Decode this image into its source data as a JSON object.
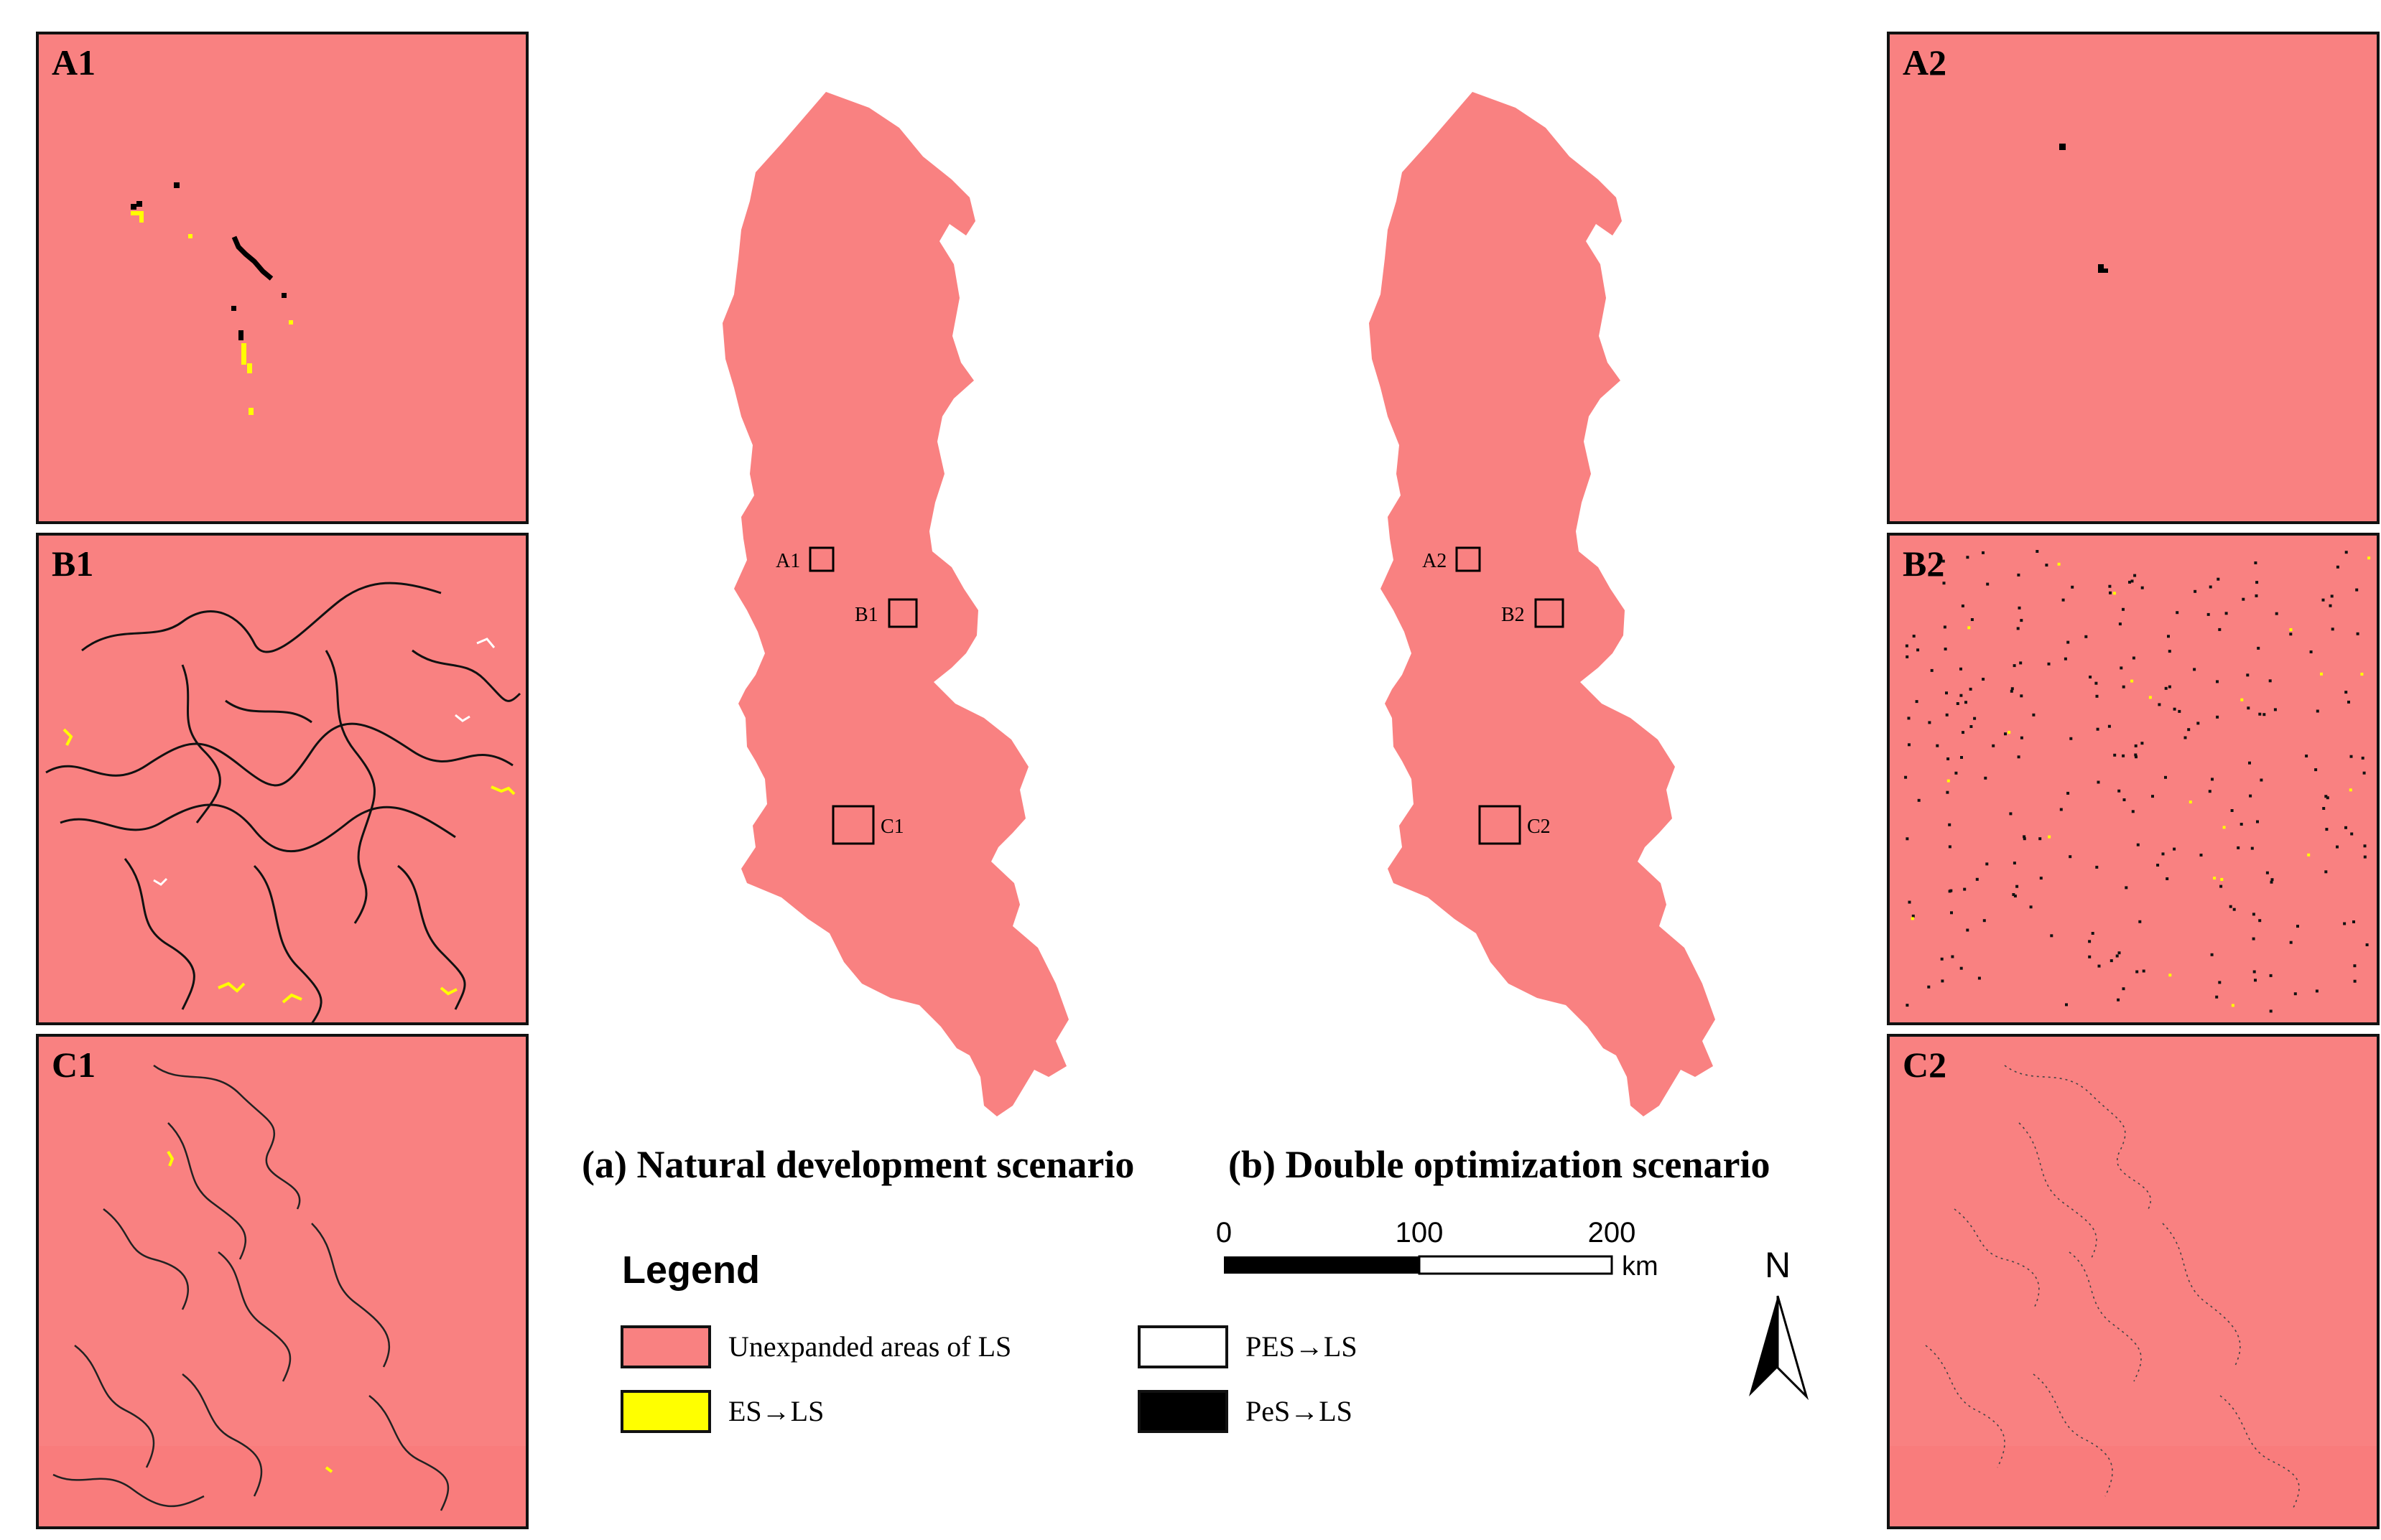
{
  "panels": {
    "a1": {
      "label": "A1"
    },
    "b1": {
      "label": "B1"
    },
    "c1": {
      "label": "C1"
    },
    "a2": {
      "label": "A2"
    },
    "b2": {
      "label": "B2"
    },
    "c2": {
      "label": "C2"
    }
  },
  "maps": {
    "natural": {
      "boxes": [
        "A1",
        "B1",
        "C1"
      ]
    },
    "optimized": {
      "boxes": [
        "A2",
        "B2",
        "C2"
      ]
    }
  },
  "captions": {
    "a": "(a) Natural development scenario",
    "b": "(b) Double optimization scenario"
  },
  "scale": {
    "ticks": [
      "0",
      "100",
      "200"
    ],
    "unit": "km"
  },
  "north": {
    "label": "N"
  },
  "legend": {
    "title": "Legend",
    "items": [
      {
        "label": "Unexpanded areas of LS",
        "color": "#f98181"
      },
      {
        "label": "ES→LS",
        "color": "#ffff00"
      },
      {
        "label": "PES→LS",
        "color": "#ffffff"
      },
      {
        "label": "PeS→LS",
        "color": "#000000"
      }
    ]
  },
  "colors": {
    "ls": "#f98181",
    "es": "#ffff00",
    "pes": "#ffffff",
    "pes_black": "#000000"
  }
}
